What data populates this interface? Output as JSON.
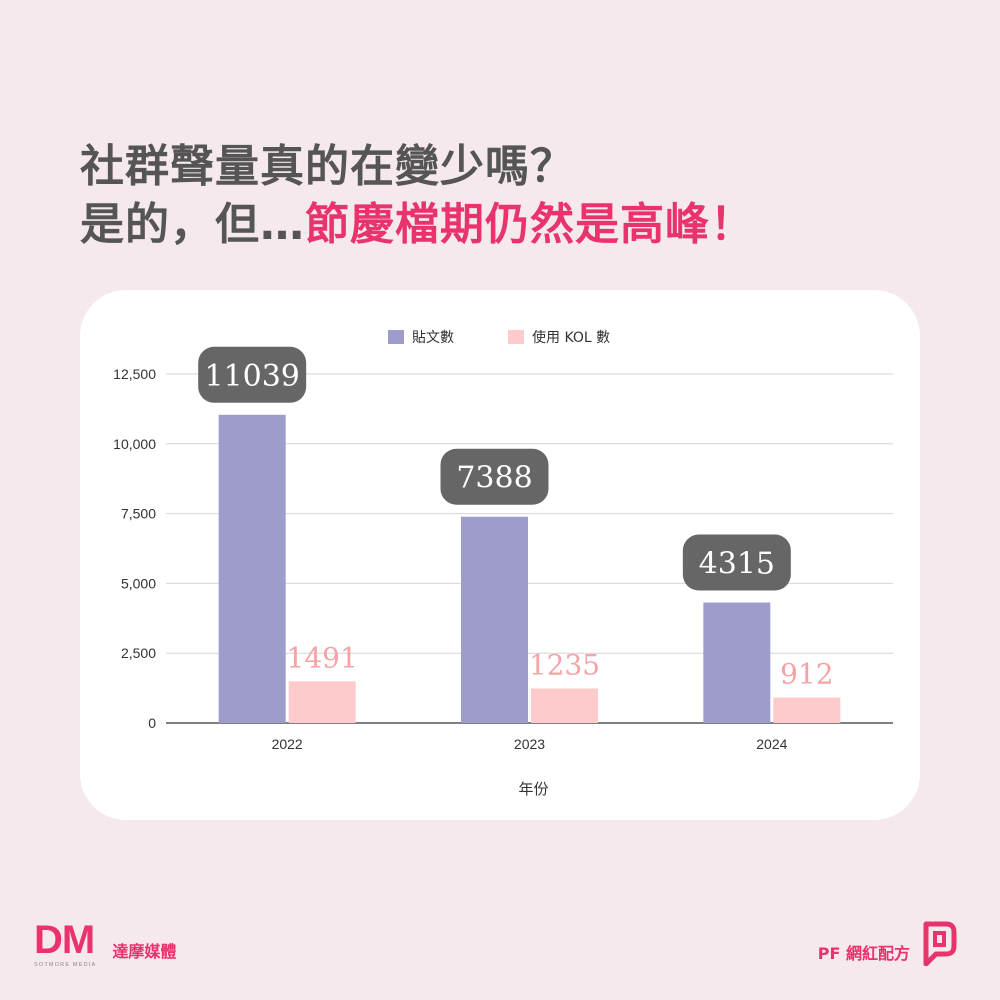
{
  "headline": {
    "line1": "社群聲量真的在變少嗎？",
    "line2_plain": "是的，但…",
    "line2_accent": "節慶檔期仍然是高峰！"
  },
  "colors": {
    "background": "#f6e9ee",
    "accent": "#e8336d",
    "series_posts": "#9d9ccb",
    "series_kol": "#fdcbcc",
    "callout_bg": "#666666",
    "kol_label": "#f5a3a6"
  },
  "chart_data": {
    "type": "bar",
    "categories": [
      "2022",
      "2023",
      "2024"
    ],
    "series": [
      {
        "name": "貼文數",
        "values": [
          11039,
          7388,
          4315
        ]
      },
      {
        "name": "使用 KOL 數",
        "values": [
          1491,
          1235,
          912
        ]
      }
    ],
    "data_labels": [
      [
        "11039",
        "7388",
        "4315"
      ],
      [
        "1491",
        "1235",
        "912"
      ]
    ],
    "xlabel": "年份",
    "ylabel": "",
    "ylim": [
      0,
      12500
    ],
    "yticks": [
      0,
      2500,
      5000,
      7500,
      10000,
      12500
    ],
    "ytick_labels": [
      "0",
      "2,500",
      "5,000",
      "7,500",
      "10,000",
      "12,500"
    ],
    "grid": true,
    "legend_position": "top-center"
  },
  "footer": {
    "left_logo_mark": "DM",
    "left_logo_sub": "SOTMORE MEDIA",
    "left_name": "達摩媒體",
    "right_name": "PF 網紅配方",
    "right_logo_icon": "pf-logo-icon"
  }
}
